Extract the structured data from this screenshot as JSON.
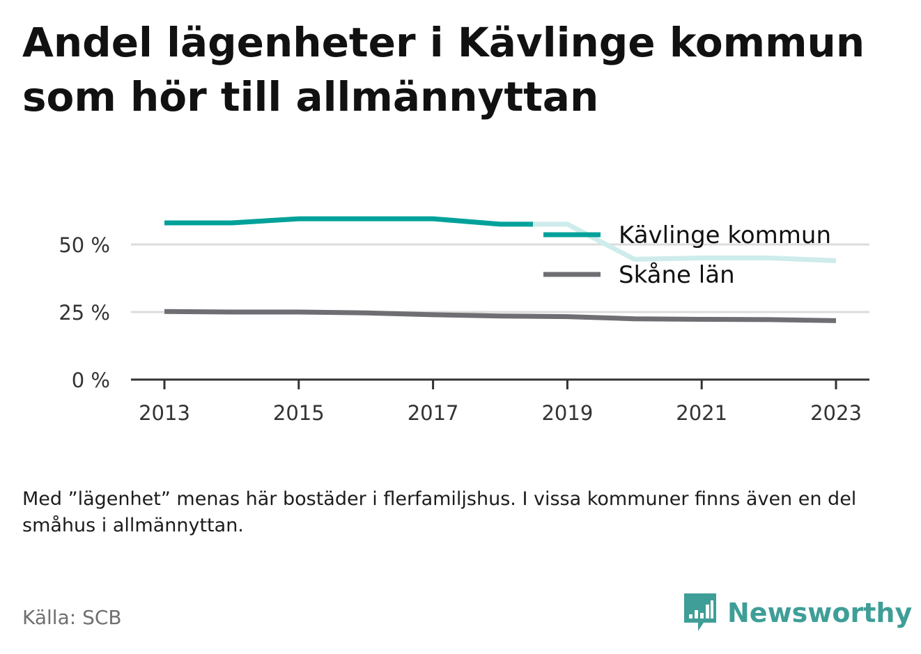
{
  "title": "Andel lägenheter i Kävlinge kommun som hör till allmännyttan",
  "note": "Med ”lägenhet” menas här bostäder i flerfamiljshus. I vissa kommuner finns även en del småhus i allmännyttan.",
  "source": "Källa: SCB",
  "brand": {
    "name": "Newsworthy",
    "icon": "newsworthy-logo-icon",
    "color": "#3f9e97"
  },
  "chart_data": {
    "type": "line",
    "x": [
      2013,
      2014,
      2015,
      2016,
      2017,
      2018,
      2019,
      2020,
      2021,
      2022,
      2023
    ],
    "xticks": [
      2013,
      2015,
      2017,
      2019,
      2021,
      2023
    ],
    "xtick_labels": [
      "2013",
      "2015",
      "2017",
      "2019",
      "2021",
      "2023"
    ],
    "yticks": [
      0,
      25,
      50
    ],
    "ytick_labels": [
      "0 %",
      "25 %",
      "50 %"
    ],
    "ylim": [
      0,
      60
    ],
    "grid": true,
    "legend_position": "top-right",
    "series": [
      {
        "name": "Kävlinge kommun",
        "values": [
          58,
          58,
          59.5,
          59.5,
          59.5,
          57.5,
          57.5,
          44.5,
          45,
          45,
          44
        ],
        "color": "#00a19a",
        "faded_color": "#cdeceb"
      },
      {
        "name": "Skåne län",
        "values": [
          25.2,
          25,
          25,
          24.7,
          24,
          23.5,
          23.3,
          22.5,
          22.3,
          22.2,
          21.8
        ],
        "color": "#6e6e73"
      }
    ]
  }
}
